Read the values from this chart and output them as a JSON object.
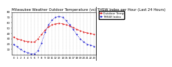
{
  "title": "Milwaukee Weather Outdoor Temperature (vs) THSW Index per Hour (Last 24 Hours)",
  "outdoor_temp": [
    33,
    30,
    28,
    26,
    25,
    24,
    24,
    30,
    38,
    46,
    52,
    56,
    58,
    59,
    58,
    56,
    54,
    51,
    48,
    45,
    43,
    41,
    40,
    38
  ],
  "thsw_index": [
    20,
    15,
    10,
    6,
    4,
    2,
    2,
    8,
    22,
    42,
    56,
    65,
    70,
    72,
    70,
    64,
    56,
    48,
    38,
    30,
    24,
    20,
    18,
    16
  ],
  "hours": [
    0,
    1,
    2,
    3,
    4,
    5,
    6,
    7,
    8,
    9,
    10,
    11,
    12,
    13,
    14,
    15,
    16,
    17,
    18,
    19,
    20,
    21,
    22,
    23
  ],
  "hour_labels": [
    "0",
    "1",
    "2",
    "3",
    "4",
    "5",
    "6",
    "7",
    "8",
    "9",
    "10",
    "11",
    "12",
    "13",
    "14",
    "15",
    "16",
    "17",
    "18",
    "19",
    "20",
    "21",
    "22",
    "23"
  ],
  "temp_color": "#dd0000",
  "thsw_color": "#0000cc",
  "ylim": [
    0,
    80
  ],
  "ytick_values": [
    10,
    20,
    30,
    40,
    50,
    60,
    70,
    80
  ],
  "background_color": "#ffffff",
  "grid_color": "#888888",
  "title_fontsize": 3.8,
  "tick_fontsize": 2.8,
  "legend_labels": [
    "Outdoor Temp",
    "THSW Index"
  ],
  "legend_fontsize": 3.2
}
